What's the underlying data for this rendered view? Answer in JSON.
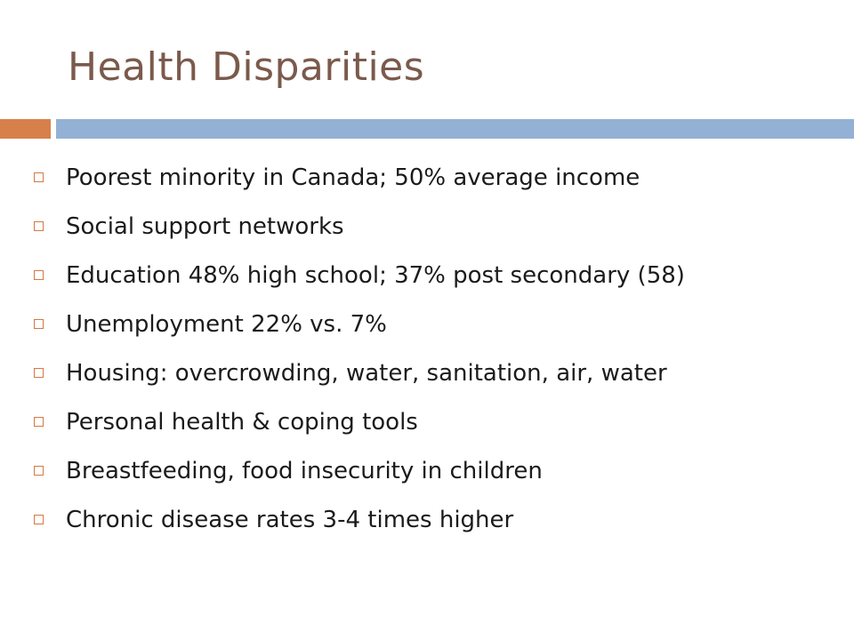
{
  "slide": {
    "title": "Health Disparities",
    "bullets": [
      "Poorest minority in Canada; 50% average income",
      "Social support networks",
      "Education 48% high school; 37% post secondary (58)",
      "Unemployment 22% vs. 7%",
      "Housing: overcrowding, water, sanitation, air, water",
      "Personal health & coping tools",
      "Breastfeeding, food insecurity in children",
      "Chronic disease rates 3-4 times higher"
    ]
  },
  "colors": {
    "title": "#7b5a4c",
    "accent_orange": "#d7804b",
    "accent_blue": "#93b1d4",
    "bullet_marker": "#d07a45",
    "text": "#1b1b1b"
  },
  "icons": {
    "bullet": "square-outline-icon"
  }
}
